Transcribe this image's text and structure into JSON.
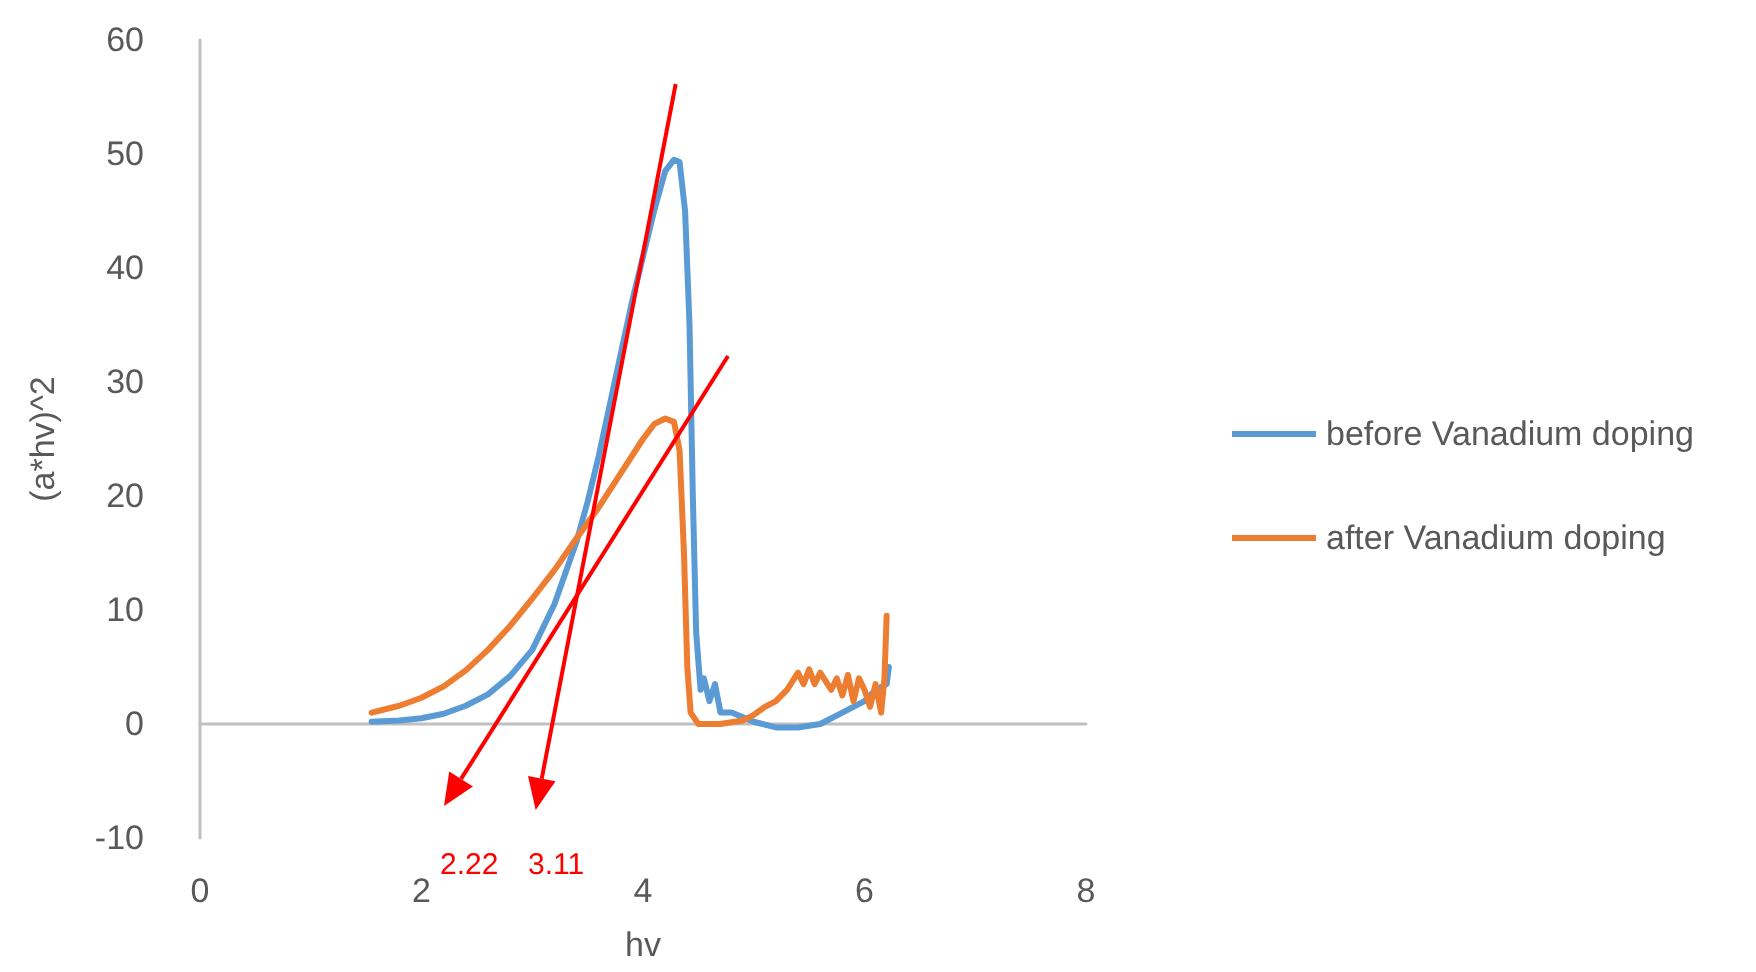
{
  "chart_data": {
    "type": "line",
    "xlabel": "hv",
    "ylabel": "(a*hv)^2",
    "xlim": [
      0,
      8
    ],
    "xticks": [
      0,
      2,
      4,
      6,
      8
    ],
    "ylim": [
      -10,
      60
    ],
    "yticks": [
      -10,
      0,
      10,
      20,
      30,
      40,
      50,
      60
    ],
    "legend": "right",
    "marker": "none",
    "line_style": "solid",
    "series": [
      {
        "name": "before Vanadium doping",
        "color": "#5b9bd5",
        "x": [
          1.55,
          1.8,
          2.0,
          2.2,
          2.4,
          2.6,
          2.8,
          3.0,
          3.2,
          3.4,
          3.5,
          3.6,
          3.7,
          3.8,
          3.9,
          4.0,
          4.1,
          4.2,
          4.28,
          4.33,
          4.38,
          4.42,
          4.45,
          4.48,
          4.52,
          4.55,
          4.6,
          4.65,
          4.7,
          4.8,
          5.0,
          5.2,
          5.4,
          5.6,
          5.8,
          6.0,
          6.1,
          6.2,
          6.22
        ],
        "values": [
          0.2,
          0.3,
          0.5,
          0.9,
          1.6,
          2.6,
          4.2,
          6.5,
          10.5,
          16,
          19.5,
          23.5,
          28,
          32.5,
          37,
          41,
          45,
          48.5,
          49.5,
          49.3,
          45,
          35,
          20,
          8,
          3,
          4,
          2,
          3.5,
          1,
          1,
          0.2,
          -0.3,
          -0.3,
          0,
          1,
          2,
          3,
          3.5,
          5
        ]
      },
      {
        "name": "after Vanadium doping",
        "color": "#ed7d31",
        "x": [
          1.55,
          1.8,
          2.0,
          2.2,
          2.4,
          2.6,
          2.8,
          3.0,
          3.2,
          3.4,
          3.6,
          3.8,
          4.0,
          4.1,
          4.2,
          4.28,
          4.33,
          4.37,
          4.4,
          4.43,
          4.5,
          4.7,
          4.9,
          5.0,
          5.1,
          5.2,
          5.3,
          5.4,
          5.45,
          5.5,
          5.55,
          5.6,
          5.7,
          5.75,
          5.8,
          5.85,
          5.9,
          5.95,
          6.0,
          6.05,
          6.1,
          6.15,
          6.18,
          6.2
        ],
        "values": [
          1.0,
          1.6,
          2.3,
          3.3,
          4.7,
          6.5,
          8.6,
          11,
          13.5,
          16.3,
          19,
          22,
          25,
          26.3,
          26.8,
          26.5,
          24,
          15,
          5,
          1,
          0,
          0,
          0.3,
          0.8,
          1.5,
          2,
          3,
          4.5,
          3.5,
          4.8,
          3.5,
          4.5,
          3,
          4,
          2.5,
          4.3,
          2,
          4,
          3,
          1.5,
          3.5,
          1,
          4,
          9.5
        ]
      }
    ],
    "annotations": [
      "2.22",
      "3.11"
    ]
  }
}
